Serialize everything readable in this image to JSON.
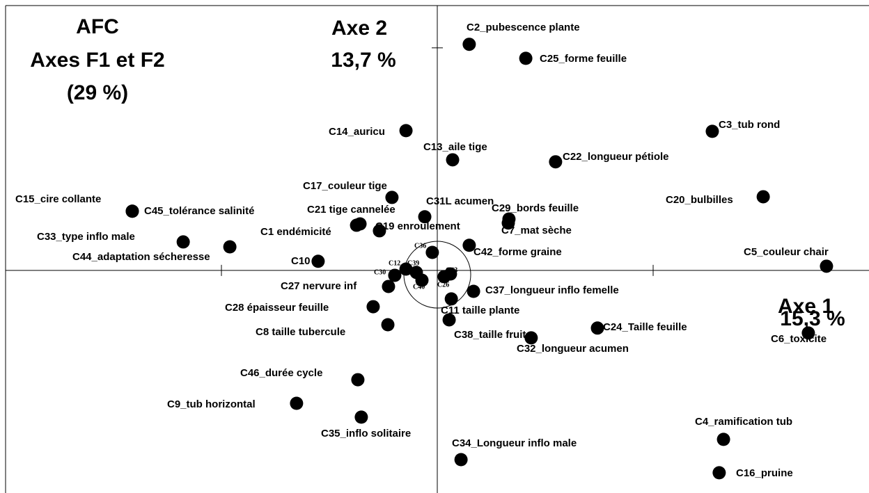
{
  "chart_data": {
    "type": "scatter",
    "annotations": [
      "AFC",
      "Axes F1 et F2",
      "(29 %)",
      "Axe 2",
      "13,7 %",
      "Axe 1",
      "15,3 %"
    ],
    "labels": [
      "C2_pubescence plante",
      "C25_forme feuille",
      "C3_tub rond",
      "C14_auricu",
      "C13_aile tige",
      "C22_longueur pétiole",
      "C20_bulbilles",
      "C17_couleur tige",
      "C15_cire collante",
      "C45_tolérance salinité",
      "C31L acumen",
      "C21 tige cannelée",
      "C29_bords feuille",
      "C7_mat sèche",
      "C1 endémicité",
      "C19 enroulement",
      "C33_type inflo male",
      "C44_adaptation sécheresse",
      "C42_forme graine",
      "C36",
      "C10",
      "C5_couleur chair",
      "C12",
      "C39",
      "C30",
      "C43",
      "C40",
      "C26",
      "C27 nervure inf",
      "C37_longueur inflo femelle",
      "C11 taille plante",
      "C28 épaisseur feuille",
      "C38_taille fruit",
      "C8 taille tubercule",
      "C24_Taille feuille",
      "C32_longueur acumen",
      "C6_toxicite",
      "C46_durée cycle",
      "C9_tub horizontal",
      "C35_inflo solitaire",
      "C4_ramification tub",
      "C34_Longueur inflo male",
      "C16_pruine"
    ],
    "x": [
      0.148,
      0.41,
      1.274,
      -0.145,
      0.071,
      0.548,
      1.51,
      -0.21,
      -1.413,
      -1.413,
      -0.058,
      -0.358,
      0.332,
      0.329,
      -0.374,
      -0.268,
      -1.177,
      -0.961,
      0.148,
      -0.023,
      -0.552,
      1.803,
      -0.145,
      -0.097,
      -0.197,
      0.061,
      -0.071,
      0.032,
      -0.226,
      0.168,
      0.065,
      -0.297,
      0.055,
      -0.229,
      0.742,
      0.435,
      1.719,
      -0.368,
      -0.652,
      -0.352,
      1.326,
      0.11,
      1.306
    ],
    "values": [
      1.016,
      0.953,
      0.625,
      0.628,
      0.497,
      0.488,
      0.331,
      0.328,
      0.266,
      0.266,
      0.241,
      0.209,
      0.231,
      0.213,
      0.203,
      0.178,
      0.128,
      0.106,
      0.113,
      0.081,
      0.041,
      0.019,
      0.006,
      -0.009,
      -0.022,
      -0.016,
      -0.044,
      -0.028,
      -0.072,
      -0.094,
      -0.128,
      -0.163,
      -0.222,
      -0.244,
      -0.259,
      -0.303,
      -0.281,
      -0.491,
      -0.597,
      -0.659,
      -0.759,
      -0.85,
      -0.909
    ],
    "color": "#000000",
    "xlim": [
      -2,
      2
    ],
    "ylim": [
      -1,
      1.19
    ],
    "xticks": [
      -1,
      1
    ],
    "yticks": [
      1
    ]
  }
}
